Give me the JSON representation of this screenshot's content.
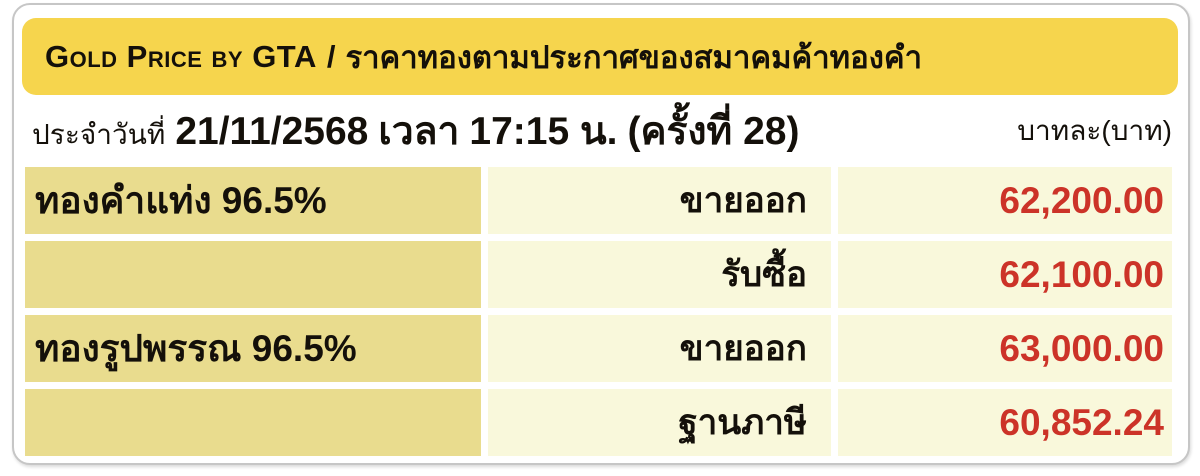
{
  "chart_data": {
    "type": "table",
    "title": "Gold Price by GTA / ราคาทองตามประกาศของสมาคมค้าทองคำ",
    "subtitle": "ประจำวันที่ 21/11/2568 เวลา 17:15 น. (ครั้งที่ 28)",
    "unit": "บาทละ(บาท)",
    "rows": [
      {
        "product": "ทองคำแท่ง 96.5%",
        "transaction": "ขายออก",
        "price_baht": 62200.0
      },
      {
        "product": "ทองคำแท่ง 96.5%",
        "transaction": "รับซื้อ",
        "price_baht": 62100.0
      },
      {
        "product": "ทองรูปพรรณ 96.5%",
        "transaction": "ขายออก",
        "price_baht": 63000.0
      },
      {
        "product": "ทองรูปพรรณ 96.5%",
        "transaction": "ฐานภาษี",
        "price_baht": 60852.24
      }
    ]
  },
  "title_bar": {
    "english": "Gold Price by GTA",
    "separator": "/",
    "thai": "ราคาทองตามประกาศของสมาคมค้าทองคำ"
  },
  "date_line": {
    "prefix": "ประจำวันที่",
    "date": "21/11/2568",
    "time_word": "เวลา",
    "time": "17:15 น.",
    "round": "(ครั้งที่ 28)",
    "unit_label": "บาทละ(บาท)"
  },
  "price_table": {
    "rows": [
      {
        "product": "ทองคำแท่ง 96.5%",
        "transaction": "ขายออก",
        "price": "62,200.00"
      },
      {
        "product": "",
        "transaction": "รับซื้อ",
        "price": "62,100.00"
      },
      {
        "product": "ทองรูปพรรณ 96.5%",
        "transaction": "ขายออก",
        "price": "63,000.00"
      },
      {
        "product": "",
        "transaction": "ฐานภาษี",
        "price": "60,852.24"
      }
    ]
  },
  "colors": {
    "header_bg": "#F6D54D",
    "product_cell_bg": "#E9DC8E",
    "value_cell_bg": "#F9F8DB",
    "price_color": "#CC3328",
    "text_color": "#14100A"
  }
}
